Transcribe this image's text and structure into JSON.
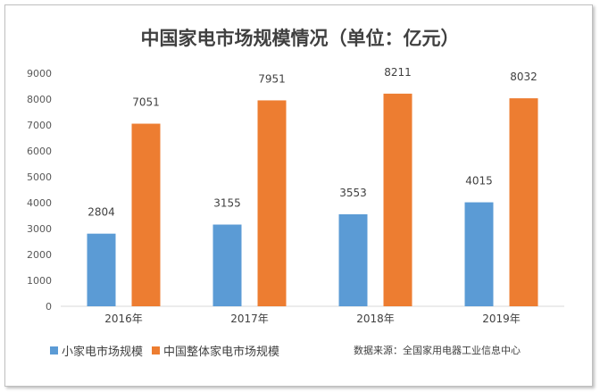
{
  "chart_data": {
    "type": "bar",
    "title": "中国家电市场规模情况（单位：亿元）",
    "categories": [
      "2016年",
      "2017年",
      "2018年",
      "2019年"
    ],
    "series": [
      {
        "name": "小家电市场规模",
        "color": "#5b9bd5",
        "values": [
          2804,
          3155,
          3553,
          4015
        ]
      },
      {
        "name": "中国整体家电市场规模",
        "color": "#ed7d31",
        "values": [
          7051,
          7951,
          8211,
          8032
        ]
      }
    ],
    "ylim": [
      0,
      9000
    ],
    "yticks": [
      0,
      1000,
      2000,
      3000,
      4000,
      5000,
      6000,
      7000,
      8000,
      9000
    ],
    "grid": false,
    "legend": "bottom-left"
  },
  "source": "数据来源：全国家用电器工业信息中心"
}
